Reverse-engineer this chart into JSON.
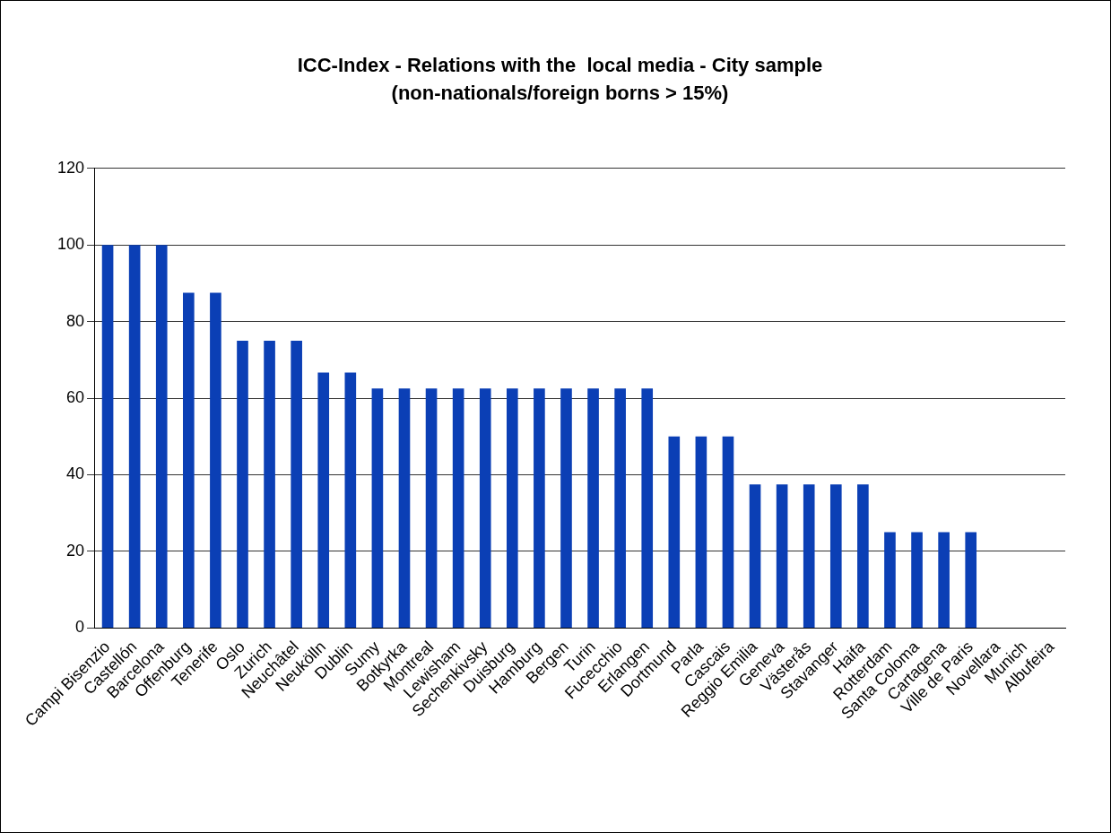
{
  "chart_data": {
    "type": "bar",
    "title": "ICC-Index - Relations with the  local media - City sample",
    "subtitle": "(non-nationals/foreign borns > 15%)",
    "categories": [
      "Campi Bisenzio",
      "Castellón",
      "Barcelona",
      "Offenburg",
      "Tenerife",
      "Oslo",
      "Zurich",
      "Neuchâtel",
      "Neukölln",
      "Dublin",
      "Sumy",
      "Botkyrka",
      "Montreal",
      "Lewisham",
      "Sechenkivsky",
      "Duisburg",
      "Hamburg",
      "Bergen",
      "Turin",
      "Fucecchio",
      "Erlangen",
      "Dortmund",
      "Parla",
      "Cascais",
      "Reggio Emilia",
      "Geneva",
      "Västerås",
      "Stavanger",
      "Haifa",
      "Rotterdam",
      "Santa Coloma",
      "Cartagena",
      "Ville de Paris",
      "Novellara",
      "Munich",
      "Albufeira"
    ],
    "values": [
      100,
      100,
      100,
      87.5,
      87.5,
      75,
      75,
      75,
      66.7,
      66.7,
      62.5,
      62.5,
      62.5,
      62.5,
      62.5,
      62.5,
      62.5,
      62.5,
      62.5,
      62.5,
      62.5,
      50,
      50,
      50,
      37.5,
      37.5,
      37.5,
      37.5,
      37.5,
      25,
      25,
      25,
      25,
      0,
      0,
      0
    ],
    "color": "#0b3fb5",
    "ylim": [
      0,
      120
    ],
    "yticks": [
      0,
      20,
      40,
      60,
      80,
      100,
      120
    ],
    "grid": "y",
    "legend": false
  }
}
